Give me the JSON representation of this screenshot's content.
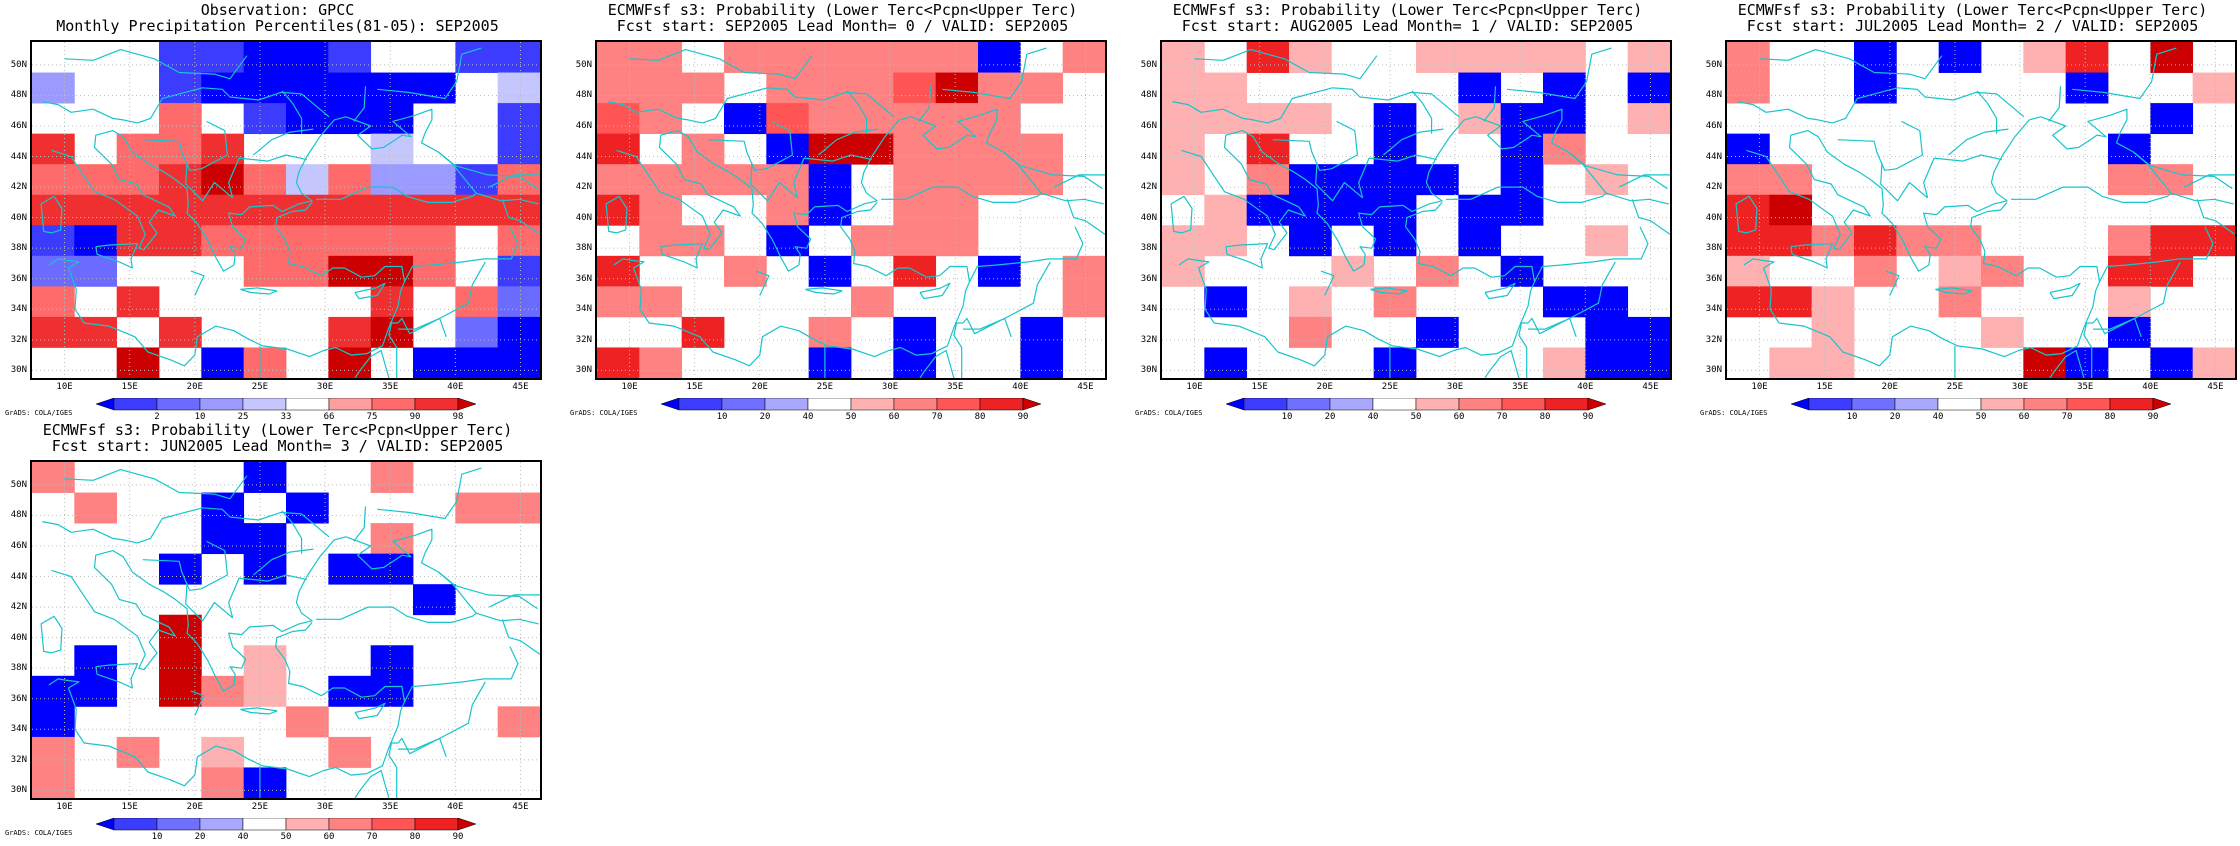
{
  "credit": "GrADS: COLA/IGES",
  "colors": {
    "obs": [
      "#0000ff",
      "#3c3cff",
      "#6b6bff",
      "#9a9aff",
      "#c6c6ff",
      "#ffffff",
      "#ff9e9e",
      "#ff6b6b",
      "#f03030",
      "#cc0000"
    ],
    "prob": [
      "#0000ff",
      "#3c3cff",
      "#7070ff",
      "#a8a8ff",
      "#ffffff",
      "#ffb0b0",
      "#ff8282",
      "#ff5555",
      "#ee2222",
      "#cc0000"
    ],
    "coast": "#17c5cd",
    "grid": "#bcbcbc"
  },
  "axes": {
    "lat_labels": [
      "50N",
      "48N",
      "46N",
      "44N",
      "42N",
      "40N",
      "38N",
      "36N",
      "34N",
      "32N",
      "30N"
    ],
    "lon_labels": [
      "10E",
      "15E",
      "20E",
      "25E",
      "30E",
      "35E",
      "40E",
      "45E"
    ]
  },
  "panels": [
    {
      "title_line1": "Observation: GPCC",
      "title_line2": "Monthly Precipitation Percentiles(81-05): SEP2005",
      "colorbar_labels": [
        "2",
        "10",
        "25",
        "33",
        "66",
        "75",
        "90",
        "98"
      ],
      "palette": "obs",
      "grid": [
        "...11001..11",
        "3..1000000.4",
        "...7.1000..1",
        "8.778...4..1",
        "777897473317",
        "888888888888",
        "1088777777.7",
        "22...77997.1",
        "7.8.....8.72",
        "88.8...89.20",
        "..9.07.9.000"
      ]
    },
    {
      "title_line1": "ECMWFsf s3: Probability (Lower Terc<Pcpn<Upper Terc)",
      "title_line2": "Fcst start: SEP2005   Lead Month= 0 / VALID: SEP2005",
      "colorbar_labels": [
        "10",
        "20",
        "40",
        "50",
        "60",
        "70",
        "80",
        "90"
      ],
      "palette": "prob",
      "grid": [
        "66.6666660.6",
        "666.6667966.",
        "76.0766666..",
        "8.6.0996666.",
        "666660.6666.",
        "86..60.66...",
        ".66.0.666...",
        "8..6.0.8.0.6",
        "66....6....6",
        "..8..6.0..0.",
        "86...0.0..0."
      ]
    },
    {
      "title_line1": "ECMWFsf s3: Probability (Lower Terc<Pcpn<Upper Terc)",
      "title_line2": "Fcst start: AUG2005   Lead Month= 1 / VALID: SEP2005",
      "colorbar_labels": [
        "10",
        "20",
        "40",
        "50",
        "60",
        "70",
        "80",
        "90"
      ],
      "palette": "prob",
      "grid": [
        "5.85..5555.5",
        "55.....0.0.0",
        "5555.0.500.5",
        "5.8..0..06..",
        "5.60000.0.5.",
        ".50000.00...",
        "55.0.0.0..5.",
        "5...5.6.0...",
        ".0.5.6...00.",
        "...6..0...00",
        ".0...0...500"
      ]
    },
    {
      "title_line1": "ECMWFsf s3: Probability (Lower Terc<Pcpn<Upper Terc)",
      "title_line2": "Fcst start: JUL2005   Lead Month= 2 / VALID: SEP2005",
      "colorbar_labels": [
        "10",
        "20",
        "40",
        "50",
        "60",
        "70",
        "80",
        "90"
      ],
      "palette": "prob",
      "grid": [
        "6..0.0.58.9.",
        "6..0....0..5",
        "..........0.",
        "0........0..",
        "66.......66.",
        "89..........",
        "886866...688",
        "5..6.56..88.",
        "885..6...5..",
        "..5...5..0..",
        ".55....90.05"
      ]
    },
    {
      "title_line1": "ECMWFsf s3: Probability (Lower Terc<Pcpn<Upper Terc)",
      "title_line2": "Fcst start: JUN2005   Lead Month= 3 / VALID: SEP2005",
      "colorbar_labels": [
        "10",
        "20",
        "40",
        "50",
        "60",
        "70",
        "80",
        "90"
      ],
      "palette": "prob",
      "grid": [
        "6....0..6...",
        ".6..0.0...66",
        "....00..6...",
        "...0.0.00...",
        ".........0..",
        "...9........",
        ".0.9.5..0...",
        "00.965.00...",
        "0.....6....6",
        "6.6.5..6....",
        "6...60......"
      ]
    }
  ]
}
